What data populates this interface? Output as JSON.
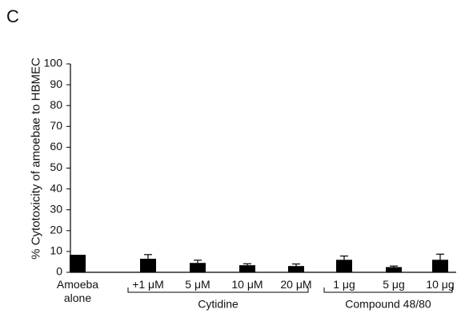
{
  "chart_data": {
    "type": "bar",
    "panel_label": "C",
    "y_label": "% Cytotoxicity of amoebae to HBMEC",
    "categories": [
      "Amoeba alone",
      "+1 μM",
      "5 μM",
      "10 μM",
      "20 μM",
      "1 μg",
      "5 μg",
      "10 μg"
    ],
    "values": [
      8.4,
      6.5,
      4.5,
      3.4,
      3,
      6,
      2.5,
      6
    ],
    "errors": [
      0,
      2,
      1.3,
      0.7,
      1,
      1.8,
      0.5,
      2.7
    ],
    "color": "#000000",
    "groups": [
      {
        "label": "Cytidine",
        "from": 1,
        "to": 4
      },
      {
        "label": "Compound 48/80",
        "from": 5,
        "to": 7
      }
    ],
    "ylim": [
      0,
      100
    ],
    "yticks": [
      0,
      10,
      20,
      30,
      40,
      50,
      60,
      70,
      80,
      90,
      100
    ],
    "grid": false
  }
}
